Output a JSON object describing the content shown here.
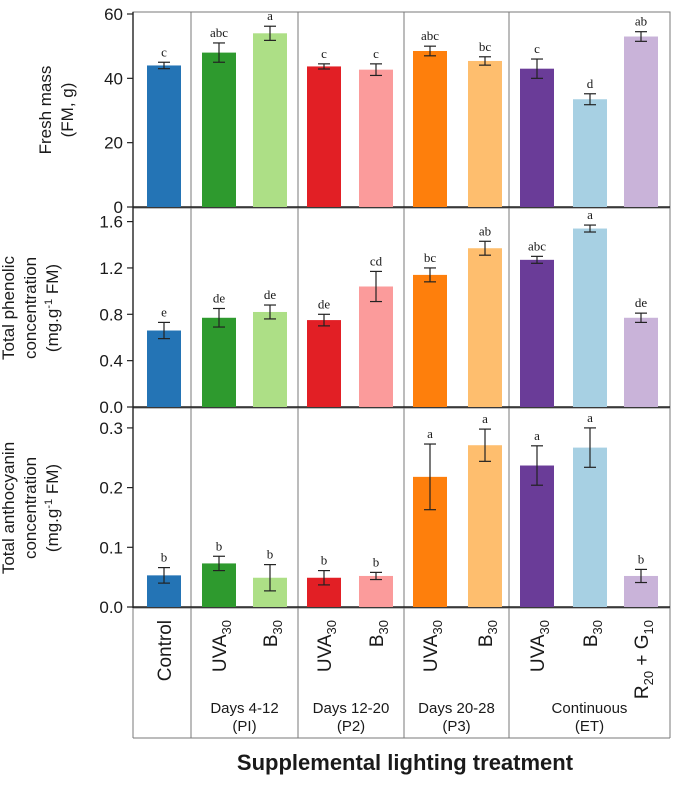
{
  "chart_data": {
    "type": "bar",
    "xlabel": "Supplemental lighting treatment",
    "groups": [
      {
        "name": "",
        "sub": ""
      },
      {
        "name": "Days 4-12",
        "sub": "(PI)"
      },
      {
        "name": "Days 12-20",
        "sub": "(P2)"
      },
      {
        "name": "Days 20-28",
        "sub": "(P3)"
      },
      {
        "name": "Continuous",
        "sub": "(ET)"
      }
    ],
    "treatments": [
      {
        "label": "Control",
        "base": "Control",
        "sub": "",
        "extra": "",
        "extra_sub": "",
        "group": 0,
        "color": "#2474b5"
      },
      {
        "label": "UVA30",
        "base": "UVA",
        "sub": "30",
        "extra": "",
        "extra_sub": "",
        "group": 1,
        "color": "#2e9a2e"
      },
      {
        "label": "B30",
        "base": "B",
        "sub": "30",
        "extra": "",
        "extra_sub": "",
        "group": 1,
        "color": "#addf86"
      },
      {
        "label": "UVA30",
        "base": "UVA",
        "sub": "30",
        "extra": "",
        "extra_sub": "",
        "group": 2,
        "color": "#e21f25"
      },
      {
        "label": "B30",
        "base": "B",
        "sub": "30",
        "extra": "",
        "extra_sub": "",
        "group": 2,
        "color": "#fb9b9b"
      },
      {
        "label": "UVA30",
        "base": "UVA",
        "sub": "30",
        "extra": "",
        "extra_sub": "",
        "group": 3,
        "color": "#fe7f0c"
      },
      {
        "label": "B30",
        "base": "B",
        "sub": "30",
        "extra": "",
        "extra_sub": "",
        "group": 3,
        "color": "#febe6e"
      },
      {
        "label": "UVA30",
        "base": "UVA",
        "sub": "30",
        "extra": "",
        "extra_sub": "",
        "group": 4,
        "color": "#6a3c98"
      },
      {
        "label": "B30",
        "base": "B",
        "sub": "30",
        "extra": "",
        "extra_sub": "",
        "group": 4,
        "color": "#a7d0e3"
      },
      {
        "label": "R20 + G10",
        "base": "R",
        "sub": "20",
        "extra": " + G",
        "extra_sub": "10",
        "group": 4,
        "color": "#c9b3d9"
      }
    ],
    "panels": [
      {
        "ylabel_lines": [
          "Fresh mass",
          "(FM, g)"
        ],
        "ylim": [
          0,
          60
        ],
        "ticks": [
          0,
          20,
          40,
          60
        ],
        "tick_labels": [
          "0",
          "20",
          "40",
          "60"
        ],
        "values": [
          44,
          48,
          54,
          43.7,
          42.7,
          48.5,
          45.4,
          43,
          33.5,
          53
        ],
        "errors": [
          1.0,
          3.0,
          2.2,
          0.8,
          1.8,
          1.5,
          1.3,
          3.0,
          1.7,
          1.5
        ],
        "letters": [
          "c",
          "abc",
          "a",
          "c",
          "c",
          "abc",
          "bc",
          "c",
          "d",
          "ab"
        ]
      },
      {
        "ylabel_lines": [
          "Total phenolic",
          "concentration",
          "(mg.g-1 FM)"
        ],
        "ylim": [
          0,
          1.7
        ],
        "ticks": [
          0,
          0.4,
          0.8,
          1.2,
          1.6
        ],
        "tick_labels": [
          "0.0",
          "0.4",
          "0.8",
          "1.2",
          "1.6"
        ],
        "values": [
          0.66,
          0.77,
          0.82,
          0.75,
          1.04,
          1.14,
          1.37,
          1.27,
          1.54,
          0.77
        ],
        "errors": [
          0.07,
          0.08,
          0.06,
          0.05,
          0.13,
          0.06,
          0.06,
          0.03,
          0.03,
          0.04
        ],
        "letters": [
          "e",
          "de",
          "de",
          "de",
          "cd",
          "bc",
          "ab",
          "abc",
          "a",
          "de"
        ]
      },
      {
        "ylabel_lines": [
          "Total anthocyanin",
          "concentration",
          "(mg.g-1 FM)"
        ],
        "ylim": [
          0,
          0.33
        ],
        "ticks": [
          0,
          0.1,
          0.2,
          0.3
        ],
        "tick_labels": [
          "0.0",
          "0.1",
          "0.2",
          "0.3"
        ],
        "values": [
          0.053,
          0.073,
          0.049,
          0.049,
          0.052,
          0.218,
          0.271,
          0.237,
          0.267,
          0.052
        ],
        "errors": [
          0.013,
          0.012,
          0.022,
          0.012,
          0.006,
          0.055,
          0.027,
          0.033,
          0.033,
          0.011
        ],
        "letters": [
          "b",
          "b",
          "b",
          "b",
          "b",
          "a",
          "a",
          "a",
          "a",
          "b"
        ]
      }
    ]
  }
}
